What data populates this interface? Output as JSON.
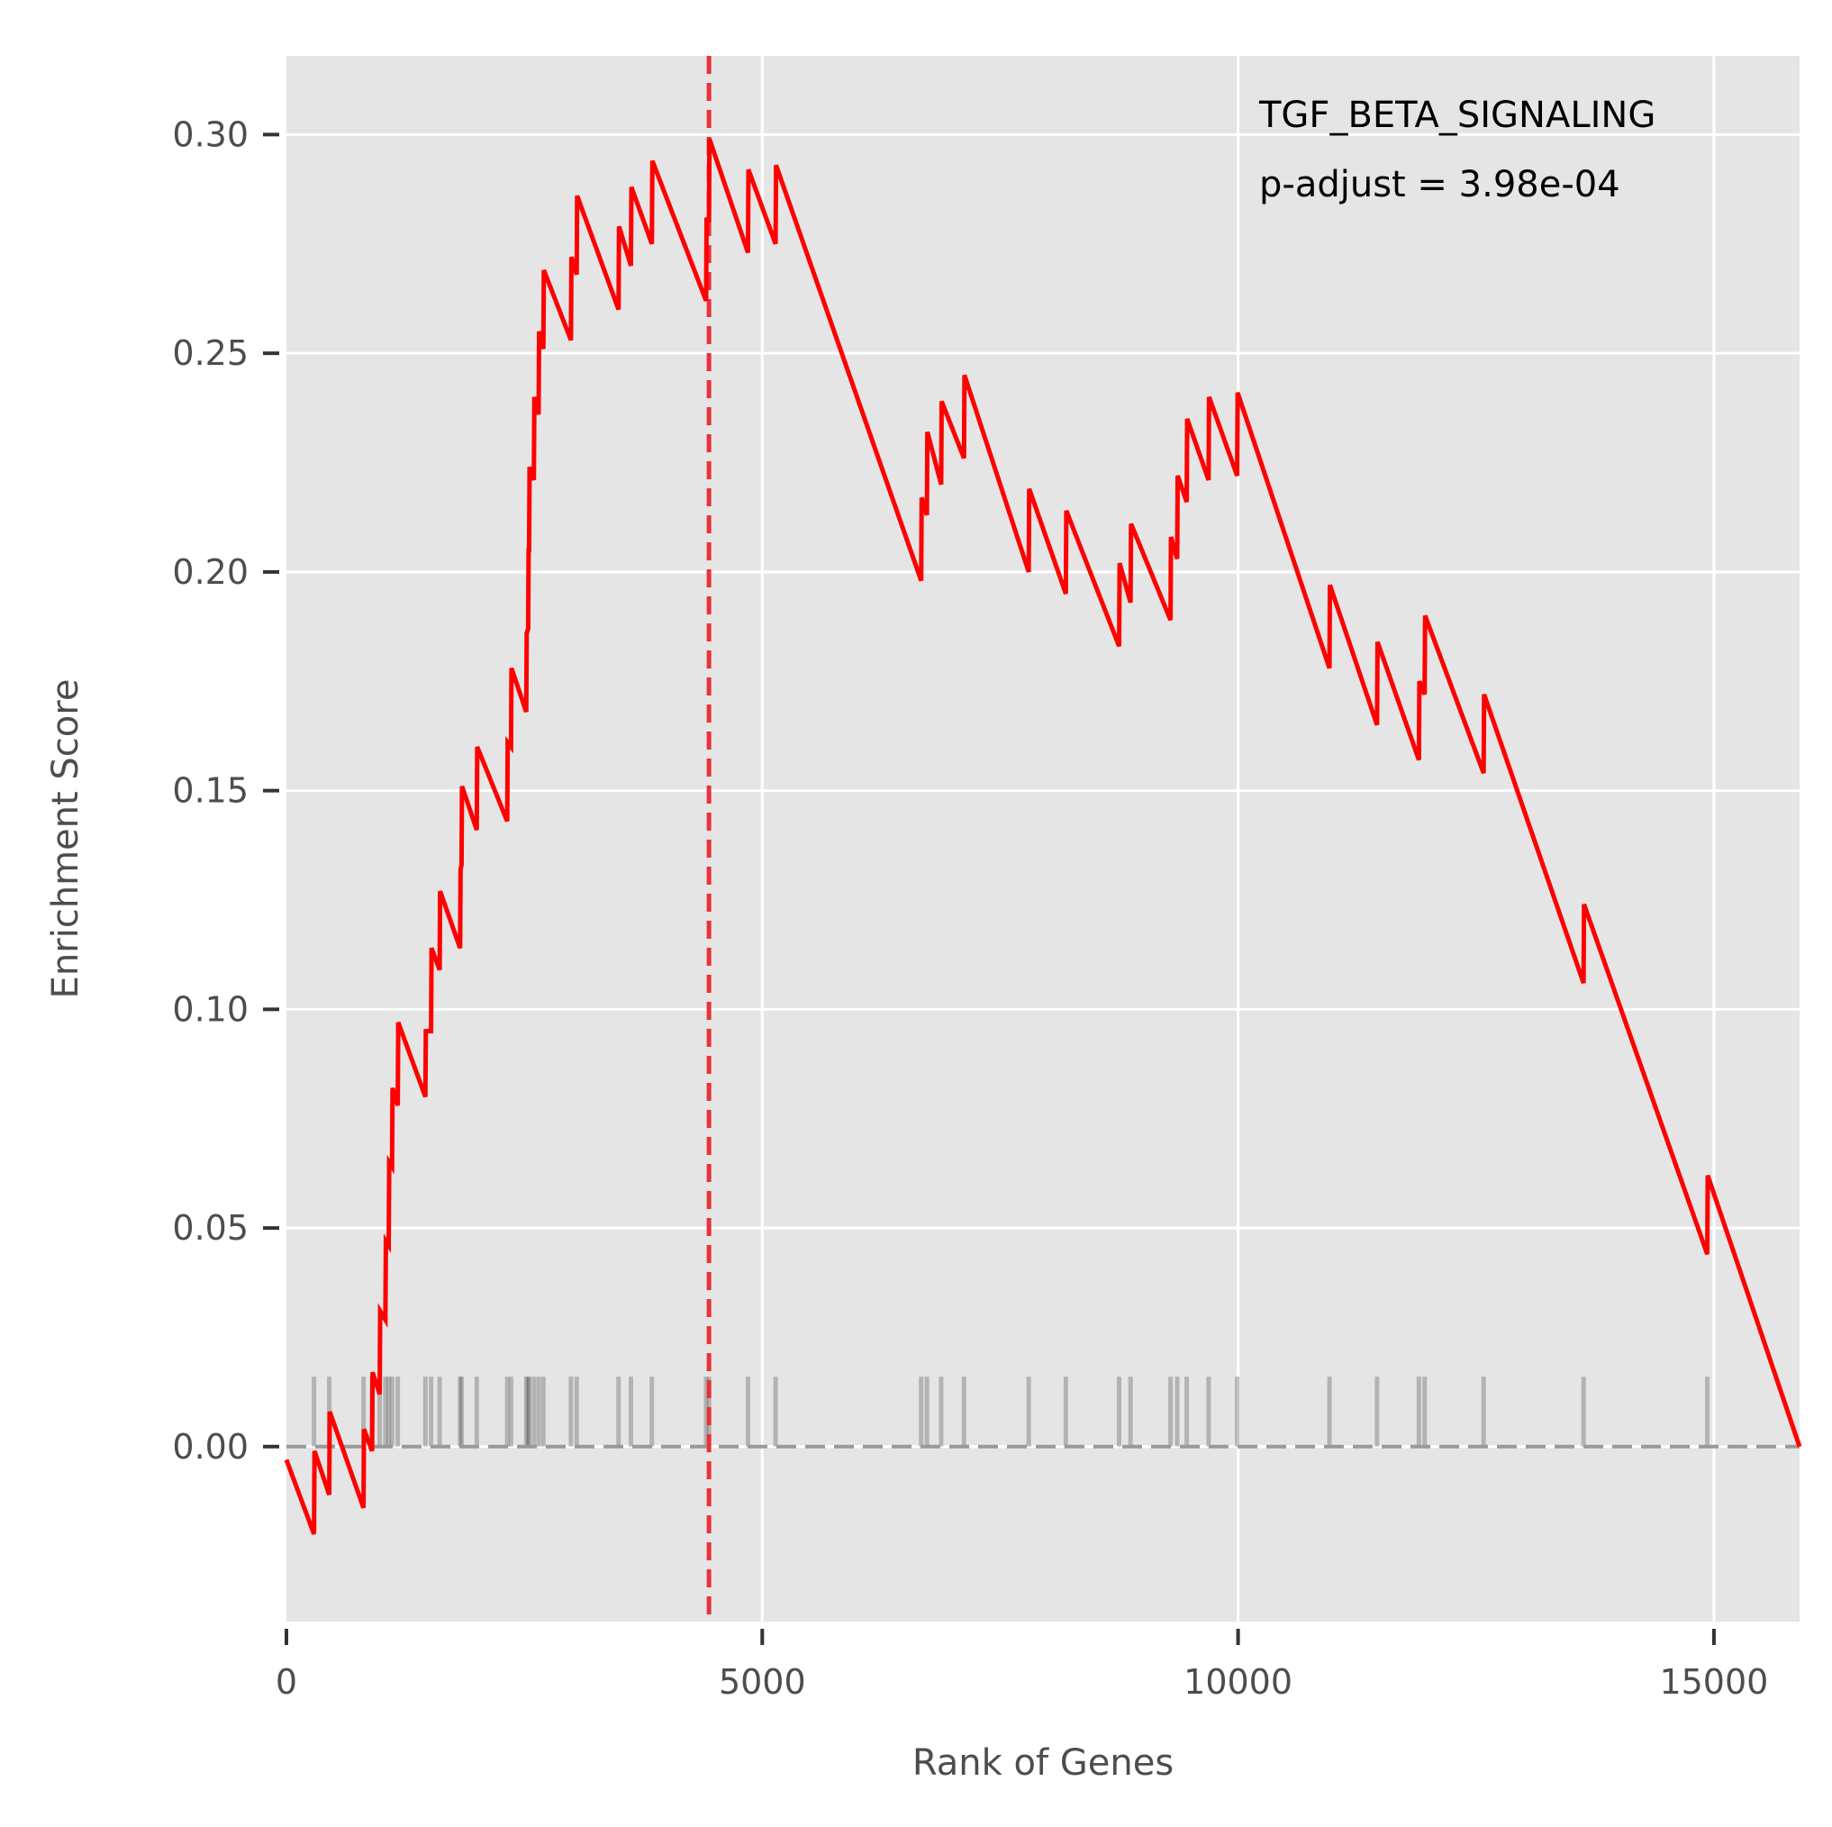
{
  "chart_data": {
    "type": "line",
    "title": "",
    "xlabel": "Rank of Genes",
    "ylabel": "Enrichment Score",
    "xlim": [
      0,
      15900
    ],
    "ylim": [
      -0.04,
      0.318
    ],
    "xticks": [
      {
        "value": 0,
        "label": "0"
      },
      {
        "value": 5000,
        "label": "5000"
      },
      {
        "value": 10000,
        "label": "10000"
      },
      {
        "value": 15000,
        "label": "15000"
      }
    ],
    "yticks": [
      {
        "value": 0.0,
        "label": "0.00"
      },
      {
        "value": 0.05,
        "label": "0.05"
      },
      {
        "value": 0.1,
        "label": "0.10"
      },
      {
        "value": 0.15,
        "label": "0.15"
      },
      {
        "value": 0.2,
        "label": "0.20"
      },
      {
        "value": 0.25,
        "label": "0.25"
      },
      {
        "value": 0.3,
        "label": "0.30"
      }
    ],
    "annotation": {
      "line1": "TGF_BETA_SIGNALING",
      "line2": "p-adjust = 3.98e-04"
    },
    "max_es_rank": 4440,
    "colors": {
      "running_score": "#ff0000",
      "peak_line": "#e8313a",
      "hits": "#555555",
      "zero_line": "#999999",
      "panel_background": "#e5e5e5",
      "grid": "#ffffff"
    },
    "series": [
      {
        "values": [
          [
            0,
            -0.003
          ],
          [
            290,
            -0.02
          ],
          [
            295,
            -0.001
          ],
          [
            450,
            -0.011
          ],
          [
            455,
            0.008
          ],
          [
            810,
            -0.014
          ],
          [
            815,
            0.004
          ],
          [
            900,
            -0.001
          ],
          [
            905,
            0.017
          ],
          [
            980,
            0.012
          ],
          [
            985,
            0.031
          ],
          [
            1040,
            0.029
          ],
          [
            1045,
            0.047
          ],
          [
            1075,
            0.046
          ],
          [
            1080,
            0.065
          ],
          [
            1110,
            0.064
          ],
          [
            1115,
            0.082
          ],
          [
            1170,
            0.078
          ],
          [
            1175,
            0.097
          ],
          [
            1460,
            0.08
          ],
          [
            1465,
            0.095
          ],
          [
            1520,
            0.095
          ],
          [
            1525,
            0.114
          ],
          [
            1610,
            0.109
          ],
          [
            1615,
            0.127
          ],
          [
            1825,
            0.114
          ],
          [
            1830,
            0.132
          ],
          [
            1840,
            0.133
          ],
          [
            1845,
            0.151
          ],
          [
            2000,
            0.141
          ],
          [
            2005,
            0.16
          ],
          [
            2320,
            0.143
          ],
          [
            2325,
            0.161
          ],
          [
            2360,
            0.16
          ],
          [
            2365,
            0.178
          ],
          [
            2520,
            0.168
          ],
          [
            2525,
            0.186
          ],
          [
            2540,
            0.187
          ],
          [
            2545,
            0.205
          ],
          [
            2550,
            0.205
          ],
          [
            2555,
            0.224
          ],
          [
            2600,
            0.221
          ],
          [
            2605,
            0.24
          ],
          [
            2650,
            0.236
          ],
          [
            2655,
            0.255
          ],
          [
            2700,
            0.251
          ],
          [
            2705,
            0.269
          ],
          [
            2990,
            0.253
          ],
          [
            2995,
            0.272
          ],
          [
            3050,
            0.268
          ],
          [
            3055,
            0.286
          ],
          [
            3490,
            0.26
          ],
          [
            3495,
            0.279
          ],
          [
            3620,
            0.27
          ],
          [
            3625,
            0.288
          ],
          [
            3840,
            0.275
          ],
          [
            3845,
            0.294
          ],
          [
            4410,
            0.262
          ],
          [
            4415,
            0.281
          ],
          [
            4440,
            0.28
          ],
          [
            4445,
            0.299
          ],
          [
            4850,
            0.273
          ],
          [
            4855,
            0.292
          ],
          [
            5140,
            0.275
          ],
          [
            5145,
            0.293
          ],
          [
            6670,
            0.198
          ],
          [
            6675,
            0.217
          ],
          [
            6730,
            0.213
          ],
          [
            6735,
            0.232
          ],
          [
            6880,
            0.22
          ],
          [
            6885,
            0.239
          ],
          [
            7120,
            0.226
          ],
          [
            7125,
            0.245
          ],
          [
            7800,
            0.2
          ],
          [
            7805,
            0.219
          ],
          [
            8190,
            0.195
          ],
          [
            8195,
            0.214
          ],
          [
            8750,
            0.183
          ],
          [
            8755,
            0.202
          ],
          [
            8870,
            0.193
          ],
          [
            8875,
            0.211
          ],
          [
            9290,
            0.189
          ],
          [
            9295,
            0.208
          ],
          [
            9360,
            0.203
          ],
          [
            9365,
            0.222
          ],
          [
            9460,
            0.216
          ],
          [
            9465,
            0.235
          ],
          [
            9690,
            0.221
          ],
          [
            9695,
            0.24
          ],
          [
            9990,
            0.222
          ],
          [
            9995,
            0.241
          ],
          [
            10960,
            0.178
          ],
          [
            10965,
            0.197
          ],
          [
            11460,
            0.165
          ],
          [
            11465,
            0.184
          ],
          [
            11900,
            0.157
          ],
          [
            11905,
            0.175
          ],
          [
            11960,
            0.172
          ],
          [
            11965,
            0.19
          ],
          [
            12580,
            0.154
          ],
          [
            12585,
            0.172
          ],
          [
            13630,
            0.106
          ],
          [
            13635,
            0.124
          ],
          [
            14930,
            0.044
          ],
          [
            14935,
            0.062
          ],
          [
            15900,
            0.0
          ]
        ]
      }
    ],
    "hits": [
      290,
      450,
      810,
      900,
      980,
      1040,
      1075,
      1110,
      1170,
      1460,
      1520,
      1610,
      1825,
      1840,
      2000,
      2320,
      2360,
      2520,
      2540,
      2550,
      2600,
      2650,
      2700,
      2990,
      3050,
      3490,
      3620,
      3840,
      4410,
      4440,
      4850,
      5140,
      6670,
      6730,
      6880,
      7120,
      7800,
      8190,
      8750,
      8870,
      9290,
      9360,
      9460,
      9690,
      9990,
      10960,
      11460,
      11900,
      11960,
      12580,
      13630,
      14930
    ]
  }
}
